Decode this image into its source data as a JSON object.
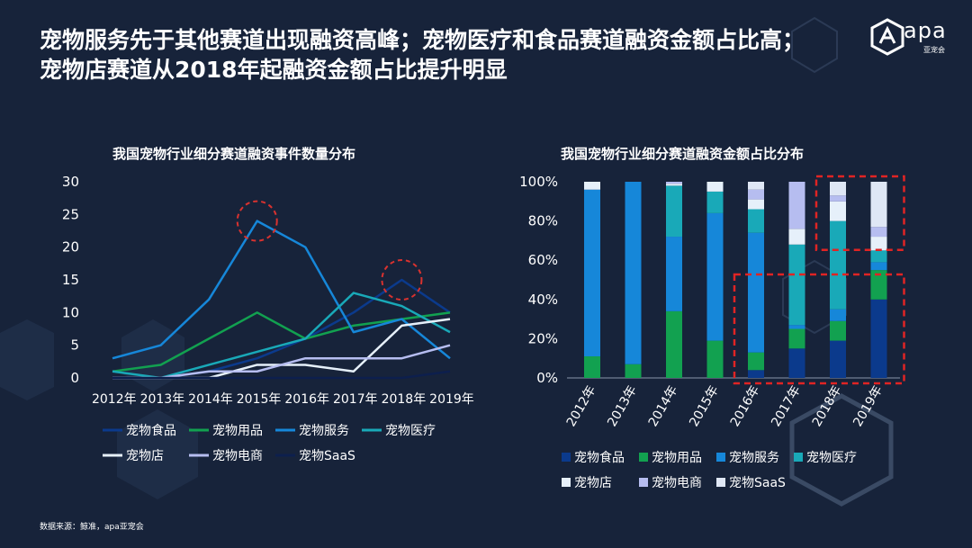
{
  "page": {
    "title_lines": [
      "宠物服务先于其他赛道出现融资高峰；宠物医疗和食品赛道融资金额占比高；",
      "宠物店赛道从2018年起融资金额占比提升明显"
    ],
    "logo_text": "apa",
    "logo_subtext": "亚宠会",
    "source": "数据来源：鲸准，apa亚宠会",
    "colors": {
      "background": "#17233a",
      "highlight_circle": "#d9322f",
      "highlight_box": "#e02424"
    }
  },
  "chart_data": [
    {
      "type": "line",
      "title": "我国宠物行业细分赛道融资事件数量分布",
      "x": [
        "2012年",
        "2013年",
        "2014年",
        "2015年",
        "2016年",
        "2017年",
        "2018年",
        "2019年"
      ],
      "ylim": [
        0,
        30
      ],
      "yticks": [
        0,
        5,
        10,
        15,
        20,
        25,
        30
      ],
      "grid": false,
      "legend_position": "bottom",
      "series": [
        {
          "name": "宠物食品",
          "color": "#0b3a8c",
          "values": [
            0,
            0,
            1,
            3,
            6,
            10,
            15,
            10
          ]
        },
        {
          "name": "宠物用品",
          "color": "#12a150",
          "values": [
            1,
            2,
            6,
            10,
            6,
            8,
            9,
            10
          ]
        },
        {
          "name": "宠物服务",
          "color": "#1687d9",
          "values": [
            3,
            5,
            12,
            24,
            20,
            7,
            9,
            3
          ]
        },
        {
          "name": "宠物医疗",
          "color": "#19a9b8",
          "values": [
            1,
            0,
            2,
            4,
            6,
            13,
            11,
            7
          ]
        },
        {
          "name": "宠物店",
          "color": "#e6f0fa",
          "values": [
            0,
            0,
            0,
            2,
            2,
            1,
            8,
            9
          ]
        },
        {
          "name": "宠物电商",
          "color": "#b6bdf0",
          "values": [
            0,
            0,
            1,
            1,
            3,
            3,
            3,
            5
          ]
        },
        {
          "name": "宠物SaaS",
          "color": "#0d1f4d",
          "values": [
            0,
            0,
            0,
            0,
            0,
            0,
            0,
            1
          ]
        }
      ],
      "annotations": [
        {
          "type": "circle",
          "x": "2015年",
          "y": 24
        },
        {
          "type": "circle",
          "x": "2018年",
          "y": 15
        }
      ]
    },
    {
      "type": "bar",
      "stacked": true,
      "title": "我国宠物行业细分赛道融资金额占比分布",
      "categories": [
        "2012年",
        "2013年",
        "2014年",
        "2015年",
        "2016年",
        "2017年",
        "2018年",
        "2019年"
      ],
      "ylim": [
        0,
        100
      ],
      "yticks": [
        "0%",
        "20%",
        "40%",
        "60%",
        "80%",
        "100%"
      ],
      "grid": false,
      "legend_position": "bottom",
      "series": [
        {
          "name": "宠物食品",
          "color": "#0b3a8c",
          "values": [
            0,
            0,
            0,
            0,
            4,
            15,
            19,
            40
          ]
        },
        {
          "name": "宠物用品",
          "color": "#12a150",
          "values": [
            11,
            7,
            34,
            19,
            9,
            10,
            10,
            15
          ]
        },
        {
          "name": "宠物服务",
          "color": "#1687d9",
          "values": [
            85,
            93,
            38,
            65,
            61,
            2,
            6,
            4
          ]
        },
        {
          "name": "宠物医疗",
          "color": "#19a9b8",
          "values": [
            0,
            0,
            26,
            11,
            12,
            41,
            45,
            6
          ]
        },
        {
          "name": "宠物店",
          "color": "#e6f0fa",
          "values": [
            4,
            0,
            1,
            5,
            5,
            8,
            10,
            7
          ]
        },
        {
          "name": "宠物电商",
          "color": "#b6bdf0",
          "values": [
            0,
            0,
            1,
            0,
            5,
            24,
            3,
            5
          ]
        },
        {
          "name": "宠物SaaS",
          "color": "#dfe7f5",
          "values": [
            0,
            0,
            0,
            0,
            4,
            0,
            7,
            23
          ]
        }
      ],
      "annotations": [
        {
          "type": "dashed-box",
          "from": "2018年",
          "to": "2019年",
          "ylim": [
            68,
            100
          ]
        },
        {
          "type": "dashed-box",
          "from": "2016年",
          "to": "2019年",
          "ylim": [
            0,
            50
          ]
        }
      ]
    }
  ]
}
